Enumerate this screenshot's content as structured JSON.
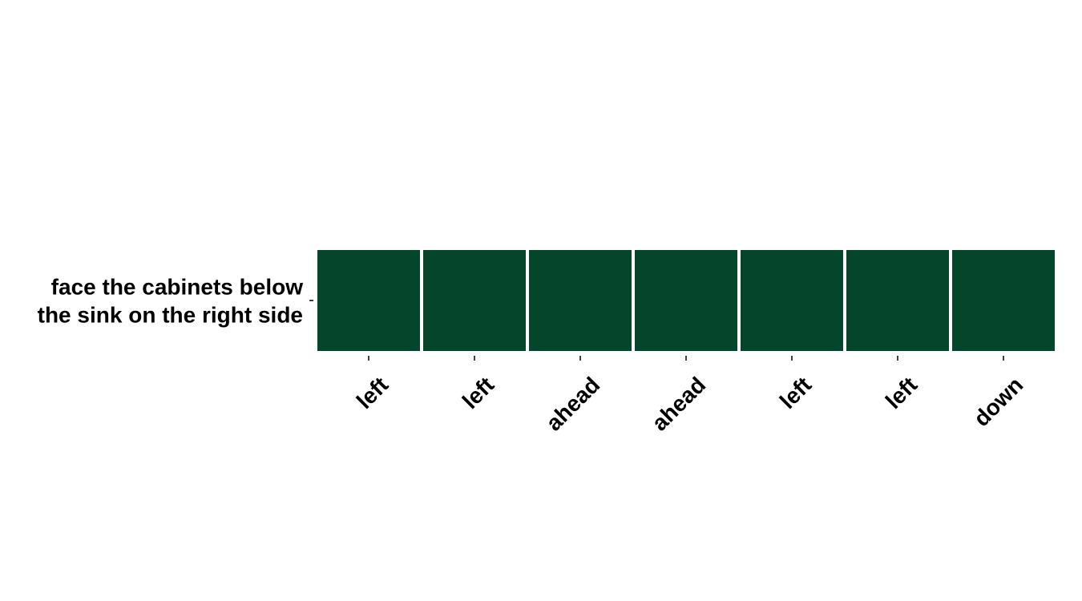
{
  "chart_data": {
    "type": "heatmap",
    "rows": [
      "face the cabinets below the sink on the right side"
    ],
    "row_label_lines": [
      [
        "face the cabinets below",
        "the sink on the right side"
      ]
    ],
    "columns": [
      "left",
      "left",
      "ahead",
      "ahead",
      "left",
      "left",
      "down"
    ],
    "values": [
      [
        1,
        1,
        1,
        1,
        1,
        1,
        1
      ]
    ],
    "cell_color": "#04452b",
    "legend": "none",
    "grid": false,
    "title": "",
    "xlabel": "",
    "ylabel": ""
  }
}
